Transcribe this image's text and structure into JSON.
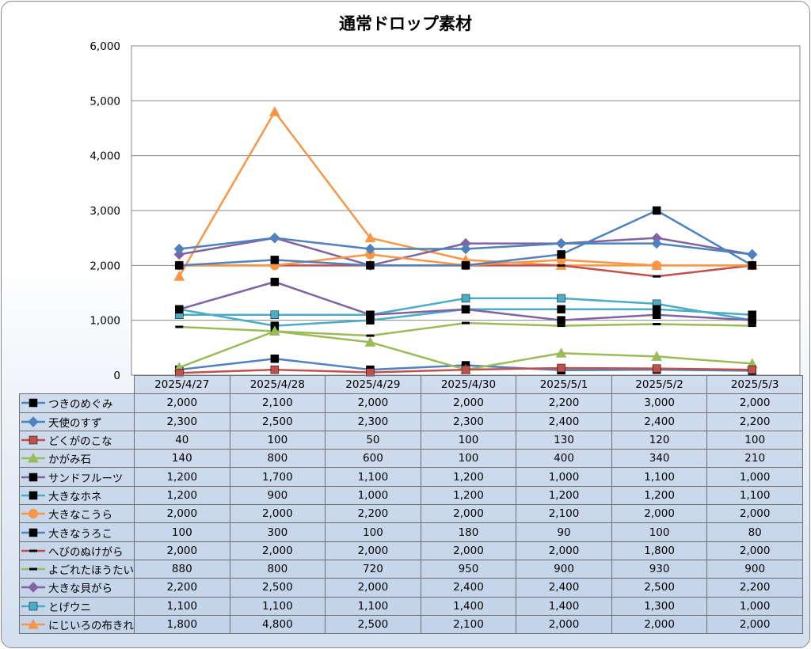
{
  "chart_data": {
    "type": "line",
    "title": "通常ドロップ素材",
    "xlabel": "",
    "ylabel": "",
    "ylim": [
      0,
      6000
    ],
    "yticks": [
      "0",
      "1,000",
      "2,000",
      "3,000",
      "4,000",
      "5,000",
      "6,000"
    ],
    "grid": true,
    "legend": "table-left",
    "categories": [
      "2025/4/27",
      "2025/4/28",
      "2025/4/29",
      "2025/4/30",
      "2025/5/1",
      "2025/5/2",
      "2025/5/3"
    ],
    "series": [
      {
        "name": "つきのめぐみ",
        "color": "#4f81bd",
        "marker": "square",
        "marker_color": "#000000",
        "values": [
          2000,
          2100,
          2000,
          2000,
          2200,
          3000,
          2000
        ],
        "labels": [
          "2,000",
          "2,100",
          "2,000",
          "2,000",
          "2,200",
          "3,000",
          "2,000"
        ]
      },
      {
        "name": "天使のすず",
        "color": "#4f81bd",
        "marker": "diamond",
        "marker_color": "#4f81bd",
        "values": [
          2300,
          2500,
          2300,
          2300,
          2400,
          2400,
          2200
        ],
        "labels": [
          "2,300",
          "2,500",
          "2,300",
          "2,300",
          "2,400",
          "2,400",
          "2,200"
        ]
      },
      {
        "name": "どくがのこな",
        "color": "#c0504d",
        "marker": "square",
        "marker_color": "#c0504d",
        "values": [
          40,
          100,
          50,
          100,
          130,
          120,
          100
        ],
        "labels": [
          "40",
          "100",
          "50",
          "100",
          "130",
          "120",
          "100"
        ]
      },
      {
        "name": "かがみ石",
        "color": "#9bbb59",
        "marker": "triangle",
        "marker_color": "#9bbb59",
        "values": [
          140,
          800,
          600,
          100,
          400,
          340,
          210
        ],
        "labels": [
          "140",
          "800",
          "600",
          "100",
          "400",
          "340",
          "210"
        ]
      },
      {
        "name": "サンドフルーツ",
        "color": "#8064a2",
        "marker": "square",
        "marker_color": "#000000",
        "values": [
          1200,
          1700,
          1100,
          1200,
          1000,
          1100,
          1000
        ],
        "labels": [
          "1,200",
          "1,700",
          "1,100",
          "1,200",
          "1,000",
          "1,100",
          "1,000"
        ]
      },
      {
        "name": "大きなホネ",
        "color": "#4bacc6",
        "marker": "square",
        "marker_color": "#000000",
        "values": [
          1200,
          900,
          1000,
          1200,
          1200,
          1200,
          1100
        ],
        "labels": [
          "1,200",
          "900",
          "1,000",
          "1,200",
          "1,200",
          "1,200",
          "1,100"
        ]
      },
      {
        "name": "大きなこうら",
        "color": "#f79646",
        "marker": "circle",
        "marker_color": "#f79646",
        "values": [
          2000,
          2000,
          2200,
          2000,
          2100,
          2000,
          2000
        ],
        "labels": [
          "2,000",
          "2,000",
          "2,200",
          "2,000",
          "2,100",
          "2,000",
          "2,000"
        ]
      },
      {
        "name": "大きなうろこ",
        "color": "#4f81bd",
        "marker": "square",
        "marker_color": "#000000",
        "values": [
          100,
          300,
          100,
          180,
          90,
          100,
          80
        ],
        "labels": [
          "100",
          "300",
          "100",
          "180",
          "90",
          "100",
          "80"
        ]
      },
      {
        "name": "へびのぬけがら",
        "color": "#c0504d",
        "marker": "dash",
        "marker_color": "#000000",
        "values": [
          2000,
          2000,
          2000,
          2000,
          2000,
          1800,
          2000
        ],
        "labels": [
          "2,000",
          "2,000",
          "2,000",
          "2,000",
          "2,000",
          "1,800",
          "2,000"
        ]
      },
      {
        "name": "よごれたほうたい",
        "color": "#9bbb59",
        "marker": "dash",
        "marker_color": "#000000",
        "values": [
          880,
          800,
          720,
          950,
          900,
          930,
          900
        ],
        "labels": [
          "880",
          "800",
          "720",
          "950",
          "900",
          "930",
          "900"
        ]
      },
      {
        "name": "大きな貝がら",
        "color": "#8064a2",
        "marker": "diamond",
        "marker_color": "#8064a2",
        "values": [
          2200,
          2500,
          2000,
          2400,
          2400,
          2500,
          2200
        ],
        "labels": [
          "2,200",
          "2,500",
          "2,000",
          "2,400",
          "2,400",
          "2,500",
          "2,200"
        ]
      },
      {
        "name": "とげウニ",
        "color": "#4bacc6",
        "marker": "square",
        "marker_color": "#4bacc6",
        "values": [
          1100,
          1100,
          1100,
          1400,
          1400,
          1300,
          1000
        ],
        "labels": [
          "1,100",
          "1,100",
          "1,100",
          "1,400",
          "1,400",
          "1,300",
          "1,000"
        ]
      },
      {
        "name": "にじいろの布きれ",
        "color": "#f79646",
        "marker": "triangle",
        "marker_color": "#f79646",
        "values": [
          1800,
          4800,
          2500,
          2100,
          2000,
          2000,
          2000
        ],
        "labels": [
          "1,800",
          "4,800",
          "2,500",
          "2,100",
          "2,000",
          "2,000",
          "2,000"
        ]
      }
    ]
  }
}
